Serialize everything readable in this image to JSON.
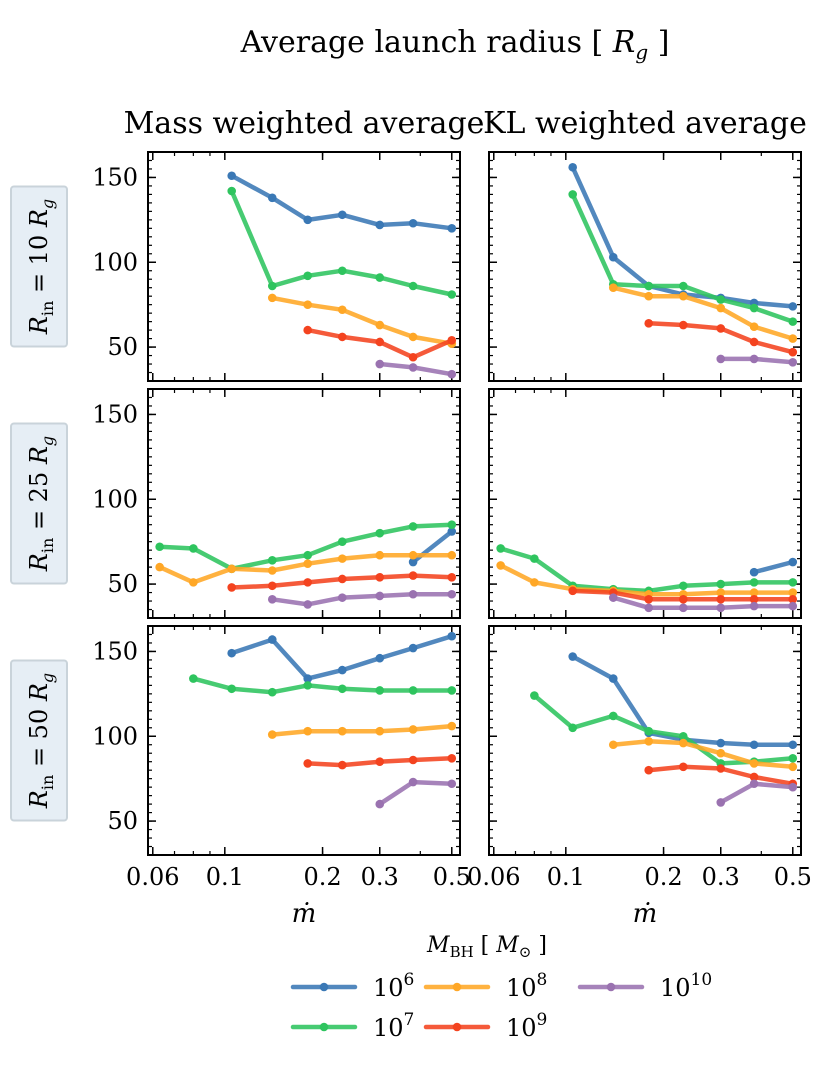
{
  "chart_data": {
    "type": "line",
    "suptitle": "Average launch radius [ R_g ]",
    "suptitle_parts": {
      "text": "Average launch radius [ ",
      "var": "R",
      "sub": "g",
      "close": " ]"
    },
    "column_titles": [
      "Mass weighted average",
      "KL weighted average"
    ],
    "row_labels": [
      {
        "text": "R_in = 10 R_g",
        "num": "10"
      },
      {
        "text": "R_in = 25 R_g",
        "num": "25"
      },
      {
        "text": "R_in = 50 R_g",
        "num": "50"
      }
    ],
    "xscale": "log",
    "xlim": [
      0.058,
      0.53
    ],
    "ylim": [
      30,
      165
    ],
    "xticks": [
      0.06,
      0.1,
      0.2,
      0.3,
      0.5
    ],
    "xtick_labels": [
      "0.06",
      "0.1",
      "0.2",
      "0.3",
      "0.5"
    ],
    "yticks": [
      50,
      100,
      150
    ],
    "ytick_labels": [
      "50",
      "100",
      "150"
    ],
    "xlabel": "ṁ",
    "legend": {
      "title": "M_BH [ M_⊙ ]",
      "entries": [
        {
          "label": "10^6",
          "base": "10",
          "exp": "6",
          "color": "#3a78b5"
        },
        {
          "label": "10^7",
          "base": "10",
          "exp": "7",
          "color": "#2ec45e"
        },
        {
          "label": "10^8",
          "base": "10",
          "exp": "8",
          "color": "#ffa726"
        },
        {
          "label": "10^9",
          "base": "10",
          "exp": "9",
          "color": "#f4431f"
        },
        {
          "label": "10^10",
          "base": "10",
          "exp": "10",
          "color": "#9a72b0"
        }
      ]
    },
    "panels": [
      {
        "row": 0,
        "col": 0,
        "series": [
          {
            "name": "10^6",
            "x": [
              0.105,
              0.14,
              0.18,
              0.23,
              0.3,
              0.38,
              0.5
            ],
            "y": [
              151,
              138,
              125,
              128,
              122,
              123,
              120
            ]
          },
          {
            "name": "10^7",
            "x": [
              0.105,
              0.14,
              0.18,
              0.23,
              0.3,
              0.38,
              0.5
            ],
            "y": [
              142,
              86,
              92,
              95,
              91,
              86,
              81
            ]
          },
          {
            "name": "10^8",
            "x": [
              0.14,
              0.18,
              0.23,
              0.3,
              0.38,
              0.5
            ],
            "y": [
              79,
              75,
              72,
              63,
              56,
              52
            ]
          },
          {
            "name": "10^9",
            "x": [
              0.18,
              0.23,
              0.3,
              0.38,
              0.5
            ],
            "y": [
              60,
              56,
              53,
              44,
              54
            ]
          },
          {
            "name": "10^10",
            "x": [
              0.3,
              0.38,
              0.5
            ],
            "y": [
              40,
              38,
              34
            ]
          }
        ]
      },
      {
        "row": 0,
        "col": 1,
        "series": [
          {
            "name": "10^6",
            "x": [
              0.105,
              0.14,
              0.18,
              0.23,
              0.3,
              0.38,
              0.5
            ],
            "y": [
              156,
              103,
              86,
              81,
              79,
              76,
              74
            ]
          },
          {
            "name": "10^7",
            "x": [
              0.105,
              0.14,
              0.18,
              0.23,
              0.3,
              0.38,
              0.5
            ],
            "y": [
              140,
              87,
              86,
              86,
              78,
              73,
              65
            ]
          },
          {
            "name": "10^8",
            "x": [
              0.14,
              0.18,
              0.23,
              0.3,
              0.38,
              0.5
            ],
            "y": [
              85,
              80,
              80,
              73,
              62,
              55
            ]
          },
          {
            "name": "10^9",
            "x": [
              0.18,
              0.23,
              0.3,
              0.38,
              0.5
            ],
            "y": [
              64,
              63,
              61,
              53,
              47
            ]
          },
          {
            "name": "10^10",
            "x": [
              0.3,
              0.38,
              0.5
            ],
            "y": [
              43,
              43,
              41
            ]
          }
        ]
      },
      {
        "row": 1,
        "col": 0,
        "series": [
          {
            "name": "10^6",
            "x": [
              0.38,
              0.5
            ],
            "y": [
              63,
              81
            ]
          },
          {
            "name": "10^7",
            "x": [
              0.063,
              0.08,
              0.105,
              0.14,
              0.18,
              0.23,
              0.3,
              0.38,
              0.5
            ],
            "y": [
              72,
              71,
              59,
              64,
              67,
              75,
              80,
              84,
              85
            ]
          },
          {
            "name": "10^8",
            "x": [
              0.063,
              0.08,
              0.105,
              0.14,
              0.18,
              0.23,
              0.3,
              0.38,
              0.5
            ],
            "y": [
              60,
              51,
              59,
              58,
              62,
              65,
              67,
              67,
              67
            ]
          },
          {
            "name": "10^9",
            "x": [
              0.105,
              0.14,
              0.18,
              0.23,
              0.3,
              0.38,
              0.5
            ],
            "y": [
              48,
              49,
              51,
              53,
              54,
              55,
              54
            ]
          },
          {
            "name": "10^10",
            "x": [
              0.14,
              0.18,
              0.23,
              0.3,
              0.38,
              0.5
            ],
            "y": [
              41,
              38,
              42,
              43,
              44,
              44
            ]
          }
        ]
      },
      {
        "row": 1,
        "col": 1,
        "series": [
          {
            "name": "10^6",
            "x": [
              0.38,
              0.5
            ],
            "y": [
              57,
              63
            ]
          },
          {
            "name": "10^7",
            "x": [
              0.063,
              0.08,
              0.105,
              0.14,
              0.18,
              0.23,
              0.3,
              0.38,
              0.5
            ],
            "y": [
              71,
              65,
              49,
              47,
              46,
              49,
              50,
              51,
              51
            ]
          },
          {
            "name": "10^8",
            "x": [
              0.063,
              0.08,
              0.105,
              0.14,
              0.18,
              0.23,
              0.3,
              0.38,
              0.5
            ],
            "y": [
              61,
              51,
              47,
              46,
              44,
              44,
              45,
              45,
              45
            ]
          },
          {
            "name": "10^9",
            "x": [
              0.105,
              0.14,
              0.18,
              0.23,
              0.3,
              0.38,
              0.5
            ],
            "y": [
              46,
              45,
              41,
              41,
              41,
              41,
              41
            ]
          },
          {
            "name": "10^10",
            "x": [
              0.14,
              0.18,
              0.23,
              0.3,
              0.38,
              0.5
            ],
            "y": [
              42,
              36,
              36,
              36,
              37,
              37
            ]
          }
        ]
      },
      {
        "row": 2,
        "col": 0,
        "series": [
          {
            "name": "10^6",
            "x": [
              0.105,
              0.14,
              0.18,
              0.23,
              0.3,
              0.38,
              0.5
            ],
            "y": [
              149,
              157,
              134,
              139,
              146,
              152,
              159
            ]
          },
          {
            "name": "10^7",
            "x": [
              0.08,
              0.105,
              0.14,
              0.18,
              0.23,
              0.3,
              0.38,
              0.5
            ],
            "y": [
              134,
              128,
              126,
              130,
              128,
              127,
              127,
              127
            ]
          },
          {
            "name": "10^8",
            "x": [
              0.14,
              0.18,
              0.23,
              0.3,
              0.38,
              0.5
            ],
            "y": [
              101,
              103,
              103,
              103,
              104,
              106
            ]
          },
          {
            "name": "10^9",
            "x": [
              0.18,
              0.23,
              0.3,
              0.38,
              0.5
            ],
            "y": [
              84,
              83,
              85,
              86,
              87
            ]
          },
          {
            "name": "10^10",
            "x": [
              0.3,
              0.38,
              0.5
            ],
            "y": [
              60,
              73,
              72
            ]
          }
        ]
      },
      {
        "row": 2,
        "col": 1,
        "series": [
          {
            "name": "10^6",
            "x": [
              0.105,
              0.14,
              0.18,
              0.23,
              0.3,
              0.38,
              0.5
            ],
            "y": [
              147,
              134,
              102,
              98,
              96,
              95,
              95
            ]
          },
          {
            "name": "10^7",
            "x": [
              0.08,
              0.105,
              0.14,
              0.18,
              0.23,
              0.3,
              0.38,
              0.5
            ],
            "y": [
              124,
              105,
              112,
              103,
              100,
              84,
              85,
              87
            ]
          },
          {
            "name": "10^8",
            "x": [
              0.14,
              0.18,
              0.23,
              0.3,
              0.38,
              0.5
            ],
            "y": [
              95,
              97,
              96,
              90,
              84,
              82
            ]
          },
          {
            "name": "10^9",
            "x": [
              0.18,
              0.23,
              0.3,
              0.38,
              0.5
            ],
            "y": [
              80,
              82,
              81,
              76,
              72
            ]
          },
          {
            "name": "10^10",
            "x": [
              0.3,
              0.38,
              0.5
            ],
            "y": [
              61,
              72,
              70
            ]
          }
        ]
      }
    ]
  }
}
